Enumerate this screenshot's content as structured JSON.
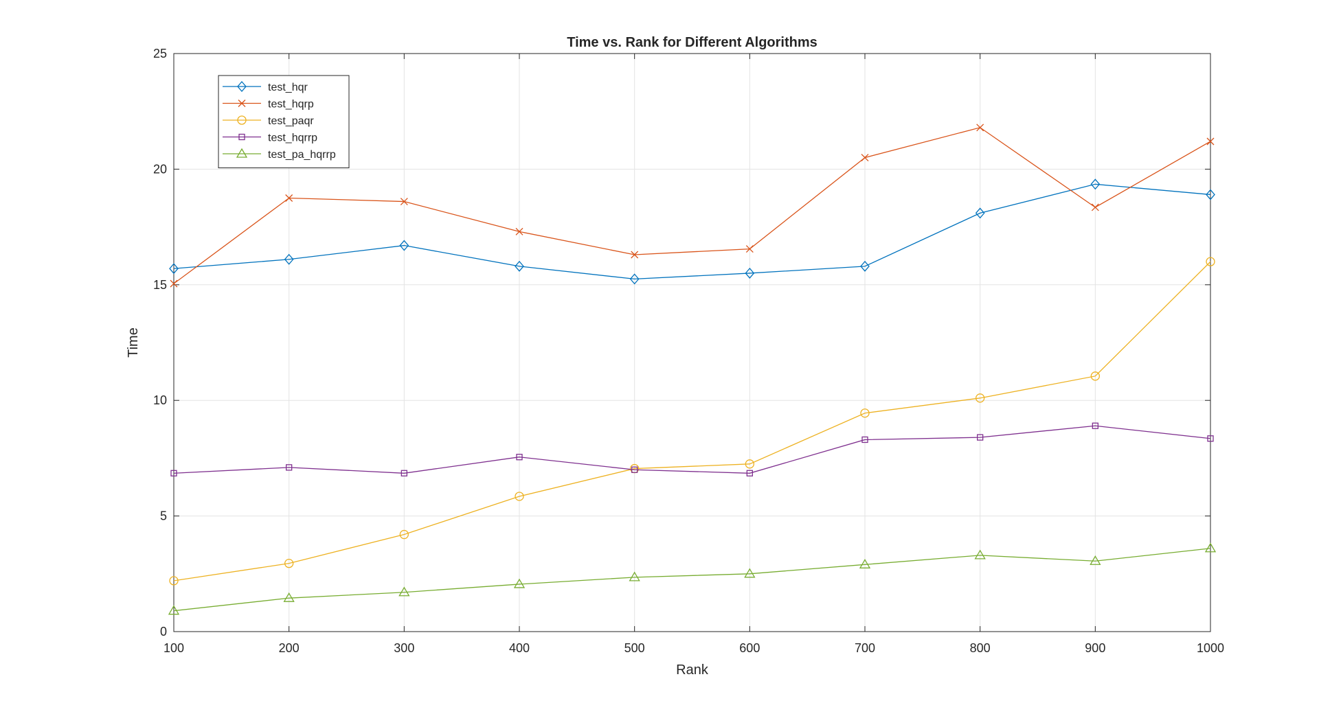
{
  "chart_data": {
    "type": "line",
    "title": "Time vs. Rank for Different Algorithms",
    "xlabel": "Rank",
    "ylabel": "Time",
    "x": [
      100,
      200,
      300,
      400,
      500,
      600,
      700,
      800,
      900,
      1000
    ],
    "xlim": [
      100,
      1000
    ],
    "ylim": [
      0,
      25
    ],
    "xticks": [
      100,
      200,
      300,
      400,
      500,
      600,
      700,
      800,
      900,
      1000
    ],
    "yticks": [
      0,
      5,
      10,
      15,
      20,
      25
    ],
    "grid": true,
    "legend_position": "top-left",
    "series": [
      {
        "name": "test_hqr",
        "color": "#0072BD",
        "marker": "diamond",
        "values": [
          15.7,
          16.1,
          16.7,
          15.8,
          15.25,
          15.5,
          15.8,
          18.1,
          19.35,
          18.9
        ]
      },
      {
        "name": "test_hqrp",
        "color": "#D95319",
        "marker": "x",
        "values": [
          15.05,
          18.75,
          18.6,
          17.3,
          16.3,
          16.55,
          20.5,
          21.8,
          18.35,
          21.2
        ]
      },
      {
        "name": "test_paqr",
        "color": "#EDB120",
        "marker": "circle",
        "values": [
          2.2,
          2.95,
          4.2,
          5.85,
          7.05,
          7.25,
          9.45,
          10.1,
          11.05,
          16.0
        ]
      },
      {
        "name": "test_hqrrp",
        "color": "#7E2F8E",
        "marker": "square",
        "values": [
          6.85,
          7.1,
          6.85,
          7.55,
          7.0,
          6.85,
          8.3,
          8.4,
          8.9,
          8.35
        ]
      },
      {
        "name": "test_pa_hqrrp",
        "color": "#77AC30",
        "marker": "triangle",
        "values": [
          0.9,
          1.45,
          1.7,
          2.05,
          2.35,
          2.5,
          2.9,
          3.3,
          3.05,
          3.6
        ]
      }
    ]
  }
}
